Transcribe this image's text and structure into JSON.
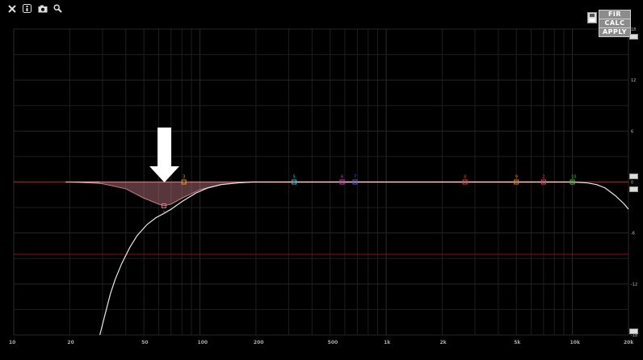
{
  "toolbar": {
    "icons": [
      "close-icon",
      "info-icon",
      "camera-icon",
      "search-icon"
    ]
  },
  "buttons": {
    "fir": "FIR",
    "calc": "CALC",
    "apply": "APPLY"
  },
  "chart_data": {
    "type": "line",
    "x_scale": "log",
    "xlim": [
      10,
      20000
    ],
    "ylim": [
      -18,
      18
    ],
    "grid": true,
    "x_ticks": [
      "10",
      "20",
      "50",
      "100",
      "200",
      "500",
      "1k",
      "2k",
      "5k",
      "10k",
      "20k"
    ],
    "y_ticks": [
      "18",
      "12",
      "6",
      "0",
      "-6",
      "-12",
      "-18"
    ],
    "colors": {
      "background": "#000000",
      "grid": "#1e1e1e",
      "zero_line": "#b01010",
      "threshold_line": "#8a1010",
      "curve": "#e8e8e8",
      "fill": "#c47a84"
    },
    "threshold_level": -8.5,
    "fill_region": {
      "x": [
        20,
        25,
        30,
        40,
        50,
        60,
        64,
        70,
        80,
        100,
        130,
        160,
        190
      ],
      "y": [
        0,
        -0.1,
        -0.2,
        -0.8,
        -1.9,
        -2.6,
        -2.8,
        -2.6,
        -1.9,
        -0.9,
        -0.3,
        -0.1,
        0
      ]
    },
    "response_curve": {
      "x": [
        29,
        31,
        33,
        35,
        38,
        42,
        46,
        52,
        58,
        64,
        70,
        80,
        95,
        110,
        130,
        160,
        190,
        300,
        1000,
        5000,
        10000,
        11000,
        12000,
        13500,
        15000,
        17000,
        19000,
        20000
      ],
      "y": [
        -18,
        -15.5,
        -13.2,
        -11.5,
        -9.6,
        -7.7,
        -6.3,
        -5.0,
        -4.2,
        -3.7,
        -3.2,
        -2.3,
        -1.3,
        -0.7,
        -0.3,
        -0.1,
        0,
        0,
        0,
        0,
        0,
        -0.05,
        -0.1,
        -0.3,
        -0.7,
        -1.6,
        -2.6,
        -3.2
      ]
    },
    "bands": [
      {
        "id": "1",
        "freq": 64,
        "gain": -2.8,
        "color": "#d07a8a"
      },
      {
        "id": "3",
        "freq": 82,
        "gain": 0,
        "color": "#e0a020"
      },
      {
        "id": "5",
        "freq": 320,
        "gain": 0,
        "color": "#20c0d0"
      },
      {
        "id": "6",
        "freq": 580,
        "gain": 0,
        "color": "#c040c0"
      },
      {
        "id": "7",
        "freq": 680,
        "gain": 0,
        "color": "#4060e0"
      },
      {
        "id": "8",
        "freq": 2650,
        "gain": 0,
        "color": "#e04040"
      },
      {
        "id": "9",
        "freq": 5000,
        "gain": 0,
        "color": "#e08020"
      },
      {
        "id": "2",
        "freq": 7000,
        "gain": 0,
        "color": "#e04060"
      },
      {
        "id": "10",
        "freq": 10000,
        "gain": 0,
        "color": "#40c040"
      }
    ]
  }
}
